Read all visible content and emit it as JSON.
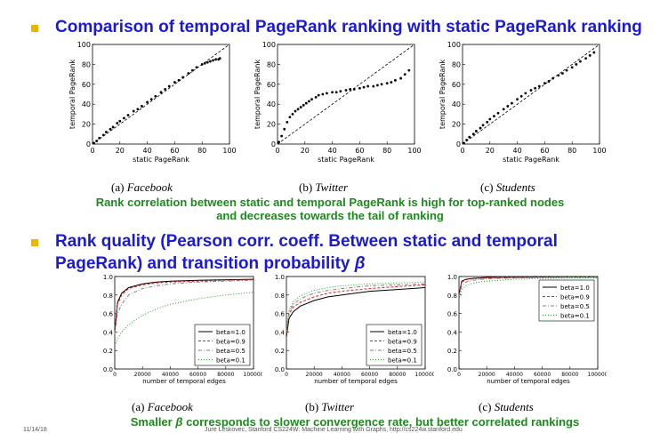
{
  "heading1": "Comparison of temporal PageRank ranking with static PageRank ranking",
  "heading2_line1": "Rank quality (Pearson corr. coeff. Between static and temporal",
  "heading2_line2": "PageRank) and transition probability",
  "beta_symbol": "β",
  "mid_note_line1": "Rank correlation between static and temporal PageRank is high for top-ranked nodes",
  "mid_note_line2": "and decreases towards the tail of ranking",
  "bottom_note_pre": "Smaller",
  "bottom_note_post": "corresponds to slower convergence rate, but better correlated rankings",
  "footer_date": "11/14/18",
  "footer_text": "Jure Leskovec, Stanford CS224W: Machine Learning with Graphs, http://cs224w.stanford.edu",
  "colors": {
    "heading": "#1a1ad6",
    "note": "#1c8a1c",
    "bullet": "#f0b400"
  },
  "scatter_captions": [
    {
      "label": "(a)",
      "name": "Facebook"
    },
    {
      "label": "(b)",
      "name": "Twitter"
    },
    {
      "label": "(c)",
      "name": "Students"
    }
  ],
  "line_captions": [
    {
      "label": "(a)",
      "name": "Facebook"
    },
    {
      "label": "(b)",
      "name": "Twitter"
    },
    {
      "label": "(c)",
      "name": "Students"
    }
  ],
  "chart_data": [
    {
      "type": "scatter",
      "panel": "Facebook",
      "xlabel": "static PageRank",
      "ylabel": "temporal PageRank",
      "xlim": [
        0,
        100
      ],
      "ylim": [
        0,
        100
      ],
      "xticks": [
        0,
        20,
        40,
        60,
        80,
        100
      ],
      "yticks": [
        0,
        20,
        40,
        60,
        80,
        100
      ],
      "reference": "diagonal dashed line y=x",
      "x": [
        1,
        3,
        5,
        8,
        10,
        13,
        15,
        18,
        20,
        23,
        26,
        30,
        33,
        36,
        40,
        43,
        46,
        50,
        53,
        56,
        60,
        63,
        66,
        70,
        73,
        76,
        80,
        82,
        84,
        86,
        88,
        90,
        92,
        93
      ],
      "y": [
        1,
        3,
        6,
        9,
        12,
        15,
        17,
        21,
        23,
        26,
        29,
        33,
        35,
        38,
        42,
        45,
        48,
        52,
        55,
        58,
        62,
        64,
        67,
        71,
        74,
        77,
        80,
        81,
        82,
        83,
        84,
        85,
        85,
        86
      ]
    },
    {
      "type": "scatter",
      "panel": "Twitter",
      "xlabel": "static PageRank",
      "ylabel": "temporal PageRank",
      "xlim": [
        0,
        100
      ],
      "ylim": [
        0,
        100
      ],
      "xticks": [
        0,
        20,
        40,
        60,
        80,
        100
      ],
      "yticks": [
        0,
        20,
        40,
        60,
        80,
        100
      ],
      "reference": "diagonal dashed line y=x",
      "x": [
        1,
        3,
        5,
        7,
        9,
        11,
        13,
        15,
        17,
        19,
        21,
        23,
        25,
        28,
        30,
        33,
        36,
        40,
        43,
        46,
        50,
        53,
        56,
        60,
        63,
        66,
        70,
        73,
        76,
        80,
        83,
        86,
        90,
        93,
        96
      ],
      "y": [
        2,
        8,
        15,
        22,
        27,
        30,
        33,
        35,
        37,
        39,
        41,
        43,
        45,
        47,
        49,
        50,
        51,
        52,
        52,
        53,
        54,
        55,
        55,
        56,
        57,
        58,
        58,
        59,
        60,
        61,
        62,
        64,
        66,
        70,
        74
      ]
    },
    {
      "type": "scatter",
      "panel": "Students",
      "xlabel": "static PageRank",
      "ylabel": "temporal PageRank",
      "xlim": [
        0,
        100
      ],
      "ylim": [
        0,
        100
      ],
      "xticks": [
        0,
        20,
        40,
        60,
        80,
        100
      ],
      "yticks": [
        0,
        20,
        40,
        60,
        80,
        100
      ],
      "reference": "diagonal dashed line y=x",
      "x": [
        1,
        3,
        5,
        8,
        10,
        13,
        15,
        18,
        20,
        23,
        26,
        30,
        33,
        36,
        40,
        43,
        46,
        50,
        53,
        56,
        60,
        63,
        66,
        70,
        73,
        76,
        80,
        83,
        86,
        90,
        93,
        96
      ],
      "y": [
        1,
        4,
        7,
        10,
        13,
        16,
        19,
        22,
        25,
        28,
        31,
        35,
        38,
        41,
        45,
        48,
        51,
        54,
        56,
        58,
        61,
        63,
        66,
        69,
        71,
        74,
        77,
        80,
        83,
        86,
        89,
        92
      ]
    },
    {
      "type": "line",
      "panel": "Facebook",
      "xlabel": "number of temporal edges",
      "ylabel": "",
      "xlim": [
        0,
        100000
      ],
      "ylim": [
        0,
        1.0
      ],
      "xticks": [
        0,
        20000,
        40000,
        60000,
        80000,
        100000
      ],
      "yticks": [
        0.0,
        0.2,
        0.4,
        0.6,
        0.8,
        1.0
      ],
      "legend_position": "lower-right",
      "x": [
        0,
        2000,
        5000,
        10000,
        20000,
        30000,
        40000,
        60000,
        80000,
        100000
      ],
      "series": [
        {
          "name": "beta=1.0",
          "style": "solid",
          "color": "#000000",
          "values": [
            0.4,
            0.72,
            0.82,
            0.88,
            0.92,
            0.94,
            0.95,
            0.96,
            0.965,
            0.97
          ]
        },
        {
          "name": "beta=0.9",
          "style": "dashed",
          "color": "#e02020",
          "values": [
            0.4,
            0.7,
            0.8,
            0.87,
            0.91,
            0.93,
            0.94,
            0.95,
            0.96,
            0.965
          ]
        },
        {
          "name": "beta=0.5",
          "style": "dashdot",
          "color": "#808080",
          "values": [
            0.38,
            0.6,
            0.7,
            0.8,
            0.87,
            0.9,
            0.92,
            0.94,
            0.95,
            0.96
          ]
        },
        {
          "name": "beta=0.1",
          "style": "dotted",
          "color": "#20a020",
          "values": [
            0.25,
            0.32,
            0.4,
            0.48,
            0.58,
            0.65,
            0.7,
            0.76,
            0.8,
            0.83
          ]
        }
      ]
    },
    {
      "type": "line",
      "panel": "Twitter",
      "xlabel": "number of temporal edges",
      "ylabel": "",
      "xlim": [
        0,
        100000
      ],
      "ylim": [
        0,
        1.0
      ],
      "xticks": [
        0,
        20000,
        40000,
        60000,
        80000,
        100000
      ],
      "yticks": [
        0.0,
        0.2,
        0.4,
        0.6,
        0.8,
        1.0
      ],
      "legend_position": "lower-right",
      "x": [
        0,
        2000,
        5000,
        10000,
        20000,
        30000,
        40000,
        60000,
        80000,
        100000
      ],
      "series": [
        {
          "name": "beta=1.0",
          "style": "solid",
          "color": "#000000",
          "values": [
            0.35,
            0.55,
            0.62,
            0.68,
            0.74,
            0.78,
            0.8,
            0.84,
            0.86,
            0.88
          ]
        },
        {
          "name": "beta=0.9",
          "style": "dashed",
          "color": "#e02020",
          "values": [
            0.38,
            0.6,
            0.67,
            0.72,
            0.78,
            0.82,
            0.84,
            0.87,
            0.89,
            0.91
          ]
        },
        {
          "name": "beta=0.5",
          "style": "dashdot",
          "color": "#808080",
          "values": [
            0.4,
            0.62,
            0.7,
            0.76,
            0.82,
            0.85,
            0.87,
            0.9,
            0.91,
            0.92
          ]
        },
        {
          "name": "beta=0.1",
          "style": "dotted",
          "color": "#20a020",
          "values": [
            0.42,
            0.64,
            0.73,
            0.79,
            0.85,
            0.88,
            0.9,
            0.92,
            0.93,
            0.94
          ]
        }
      ]
    },
    {
      "type": "line",
      "panel": "Students",
      "xlabel": "number of temporal edges",
      "ylabel": "",
      "xlim": [
        0,
        100000
      ],
      "ylim": [
        0,
        1.0
      ],
      "xticks": [
        0,
        20000,
        40000,
        60000,
        80000,
        100000
      ],
      "yticks": [
        0.0,
        0.2,
        0.4,
        0.6,
        0.8,
        1.0
      ],
      "legend_position": "upper-right",
      "x": [
        0,
        2000,
        5000,
        10000,
        20000,
        30000,
        40000,
        60000,
        80000,
        100000
      ],
      "series": [
        {
          "name": "beta=1.0",
          "style": "solid",
          "color": "#000000",
          "values": [
            0.8,
            0.95,
            0.97,
            0.98,
            0.99,
            0.99,
            0.99,
            0.995,
            0.995,
            0.995
          ]
        },
        {
          "name": "beta=0.9",
          "style": "dashed",
          "color": "#e02020",
          "values": [
            0.8,
            0.94,
            0.965,
            0.975,
            0.985,
            0.99,
            0.99,
            0.99,
            0.995,
            0.995
          ]
        },
        {
          "name": "beta=0.5",
          "style": "dashdot",
          "color": "#808080",
          "values": [
            0.78,
            0.9,
            0.94,
            0.96,
            0.975,
            0.98,
            0.985,
            0.99,
            0.99,
            0.99
          ]
        },
        {
          "name": "beta=0.1",
          "style": "dotted",
          "color": "#20a020",
          "values": [
            0.75,
            0.86,
            0.9,
            0.93,
            0.95,
            0.96,
            0.97,
            0.98,
            0.985,
            0.985
          ]
        }
      ]
    }
  ]
}
